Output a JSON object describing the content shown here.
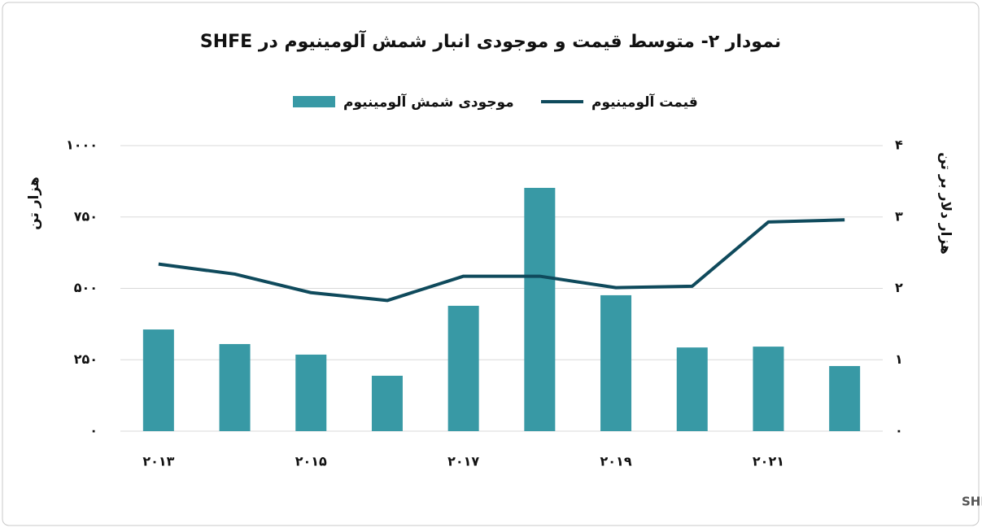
{
  "chart_data": {
    "type": "bar",
    "title": "نمودار ۲- متوسط قیمت و موجودی انبار شمش آلومینیوم در SHFE",
    "y_label": "هزار تن",
    "y2_label": "هزار دلار بر تن",
    "source": "منبع: SHFE",
    "categories": [
      "۲۰۱۳",
      null,
      "۲۰۱۵",
      null,
      "۲۰۱۷",
      null,
      "۲۰۱۹",
      null,
      "۲۰۲۱",
      null
    ],
    "series": [
      {
        "name": "موجودی شمش آلومینیوم",
        "type": "bar",
        "color": "#3899a5",
        "values": [
          356,
          305,
          268,
          194,
          439,
          852,
          476,
          293,
          296,
          228
        ]
      },
      {
        "name": "قیمت آلومینیوم",
        "type": "line",
        "axis": "y2",
        "color": "#0f4a5c",
        "values": [
          2.34,
          2.2,
          1.94,
          1.83,
          2.17,
          2.17,
          2.01,
          2.03,
          2.93,
          2.96
        ]
      }
    ],
    "ylim": [
      0,
      1000
    ],
    "yticks": [
      {
        "value": 0,
        "label": "۰"
      },
      {
        "value": 250,
        "label": "۲۵۰"
      },
      {
        "value": 500,
        "label": "۵۰۰"
      },
      {
        "value": 750,
        "label": "۷۵۰"
      },
      {
        "value": 1000,
        "label": "۱۰۰۰"
      }
    ],
    "y2lim": [
      0,
      4
    ],
    "y2ticks": [
      {
        "value": 0,
        "label": "۰"
      },
      {
        "value": 1,
        "label": "۱"
      },
      {
        "value": 2,
        "label": "۲"
      },
      {
        "value": 3,
        "label": "۳"
      },
      {
        "value": 4,
        "label": "۴"
      }
    ],
    "grid": true
  }
}
